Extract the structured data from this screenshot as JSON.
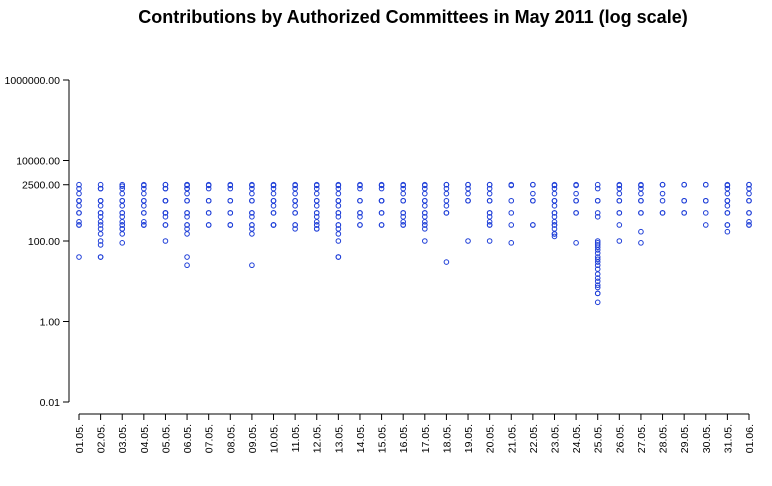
{
  "chart_data": {
    "type": "scatter",
    "title": "Contributions by Authorized Committees in May 2011 (log scale)",
    "xlabel": "",
    "ylabel": "",
    "y_scale": "log",
    "ylim": [
      0.01,
      1000000
    ],
    "y_ticks": [
      {
        "value": 0.01,
        "label": "0.01"
      },
      {
        "value": 1,
        "label": "1.00"
      },
      {
        "value": 100,
        "label": "100.00"
      },
      {
        "value": 2500,
        "label": "2500.00"
      },
      {
        "value": 10000,
        "label": "10000.00"
      },
      {
        "value": 1000000,
        "label": "1000000.00"
      }
    ],
    "categories": [
      "01.05.",
      "02.05.",
      "03.05.",
      "04.05.",
      "05.05.",
      "06.05.",
      "07.05.",
      "08.05.",
      "09.05.",
      "10.05.",
      "11.05.",
      "12.05.",
      "13.05.",
      "14.05.",
      "15.05.",
      "16.05.",
      "17.05.",
      "18.05.",
      "19.05.",
      "20.05.",
      "21.05.",
      "22.05.",
      "23.05.",
      "24.05.",
      "25.05.",
      "26.05.",
      "27.05.",
      "28.05.",
      "29.05.",
      "30.05.",
      "31.05.",
      "01.06."
    ],
    "point_color": "#1f3fd8",
    "grid": false,
    "legend": "none",
    "series": [
      {
        "values": [
          [
            2500,
            2000,
            1500,
            1000,
            1000,
            750,
            500,
            500,
            300,
            250,
            250,
            40
          ],
          [
            2500,
            2000,
            2000,
            1000,
            1000,
            750,
            500,
            500,
            400,
            300,
            250,
            200,
            150,
            100,
            80,
            40,
            40
          ],
          [
            2500,
            2300,
            2000,
            1500,
            1000,
            1000,
            750,
            500,
            500,
            400,
            300,
            250,
            250,
            200,
            200,
            150,
            90
          ],
          [
            2500,
            2400,
            2000,
            1500,
            1000,
            1000,
            750,
            500,
            500,
            300,
            250,
            250,
            250
          ],
          [
            2500,
            2500,
            2000,
            2000,
            1000,
            1000,
            1000,
            500,
            500,
            500,
            400,
            250,
            250,
            100
          ],
          [
            2500,
            2500,
            2400,
            2000,
            2000,
            1500,
            1000,
            1000,
            500,
            500,
            400,
            250,
            250,
            200,
            150,
            40,
            25
          ],
          [
            2500,
            2400,
            2000,
            1000,
            1000,
            500,
            500,
            250,
            250
          ],
          [
            2500,
            2400,
            2000,
            1000,
            1000,
            500,
            500,
            250,
            250,
            250
          ],
          [
            2500,
            2400,
            2000,
            1500,
            1000,
            1000,
            500,
            500,
            400,
            250,
            250,
            200,
            150,
            25
          ],
          [
            2500,
            2400,
            2000,
            1500,
            1000,
            1000,
            750,
            500,
            500,
            250,
            250,
            250
          ],
          [
            2500,
            2400,
            2000,
            1500,
            1000,
            1000,
            750,
            500,
            500,
            250,
            250,
            200
          ],
          [
            2500,
            2400,
            2000,
            1500,
            1000,
            1000,
            750,
            500,
            500,
            400,
            300,
            250,
            250,
            200,
            200
          ],
          [
            2500,
            2400,
            2000,
            1500,
            1000,
            1000,
            750,
            500,
            500,
            400,
            250,
            250,
            200,
            150,
            100,
            40,
            40
          ],
          [
            2500,
            2400,
            2000,
            1000,
            1000,
            500,
            500,
            400,
            250,
            250
          ],
          [
            2500,
            2400,
            2000,
            1000,
            1000,
            1000,
            500,
            500,
            250,
            250
          ],
          [
            2500,
            2400,
            2000,
            1500,
            1000,
            1000,
            500,
            500,
            400,
            300,
            250,
            250
          ],
          [
            2500,
            2400,
            2000,
            1500,
            1000,
            1000,
            750,
            500,
            500,
            400,
            300,
            250,
            250,
            200,
            100
          ],
          [
            2500,
            2500,
            2000,
            1500,
            1000,
            750,
            500,
            500,
            30
          ],
          [
            2500,
            2500,
            2000,
            1500,
            1000,
            1000,
            100
          ],
          [
            2500,
            2500,
            2000,
            1500,
            1000,
            1000,
            500,
            500,
            400,
            300,
            250,
            250,
            100
          ],
          [
            2500,
            2400,
            1000,
            500,
            250,
            90
          ],
          [
            2500,
            2500,
            1500,
            1000,
            1000,
            250,
            250
          ],
          [
            2500,
            2400,
            2000,
            1500,
            1000,
            1000,
            750,
            500,
            500,
            400,
            300,
            250,
            250,
            200,
            150,
            150,
            130
          ],
          [
            2500,
            2400,
            1500,
            1000,
            1000,
            500,
            500,
            90
          ],
          [
            2500,
            2000,
            1000,
            1000,
            500,
            400,
            100,
            90,
            80,
            70,
            60,
            50,
            40,
            35,
            30,
            25,
            20,
            15,
            12,
            10,
            8,
            7,
            5,
            5,
            3
          ],
          [
            2500,
            2400,
            2000,
            1500,
            1000,
            1000,
            500,
            500,
            250,
            100
          ],
          [
            2500,
            2400,
            2000,
            1500,
            1000,
            1000,
            500,
            500,
            170,
            90
          ],
          [
            2500,
            2500,
            1500,
            1000,
            500,
            500
          ],
          [
            2500,
            2500,
            1000,
            1000,
            500,
            500
          ],
          [
            2500,
            2500,
            1000,
            1000,
            500,
            250
          ],
          [
            2500,
            2400,
            2000,
            1500,
            1000,
            1000,
            750,
            500,
            500,
            250,
            250,
            170
          ],
          [
            2500,
            2500,
            2000,
            1500,
            1000,
            1000,
            500,
            500,
            300,
            250,
            250
          ]
        ]
      }
    ]
  }
}
